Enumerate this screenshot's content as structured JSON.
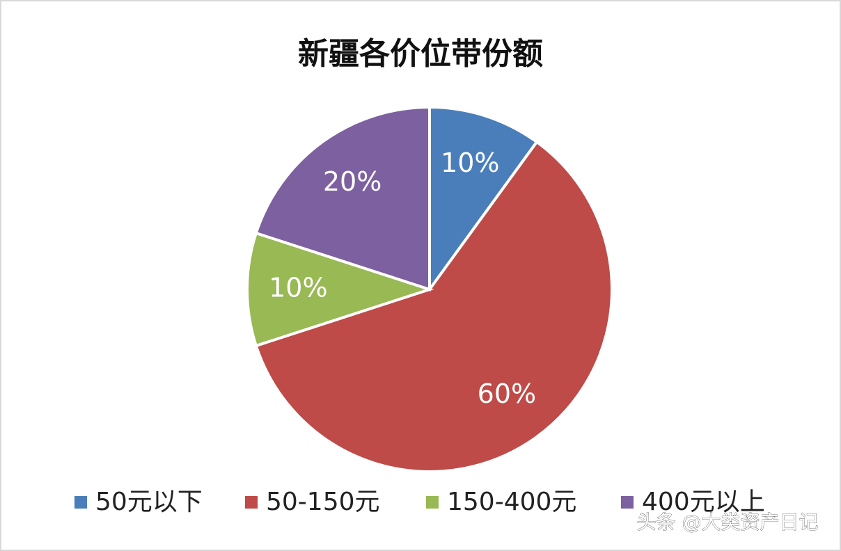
{
  "chart_data": {
    "type": "pie",
    "title": "新疆各价位带份额",
    "categories": [
      "50元以下",
      "50-150元",
      "150-400元",
      "400元以上"
    ],
    "values": [
      10,
      60,
      10,
      20
    ],
    "value_labels": [
      "10%",
      "60%",
      "10%",
      "20%"
    ],
    "colors": [
      "#4a7ebb",
      "#be4b48",
      "#98b954",
      "#7d60a0"
    ],
    "legend": "bottom"
  },
  "watermark": "头条 @大类资产日记"
}
